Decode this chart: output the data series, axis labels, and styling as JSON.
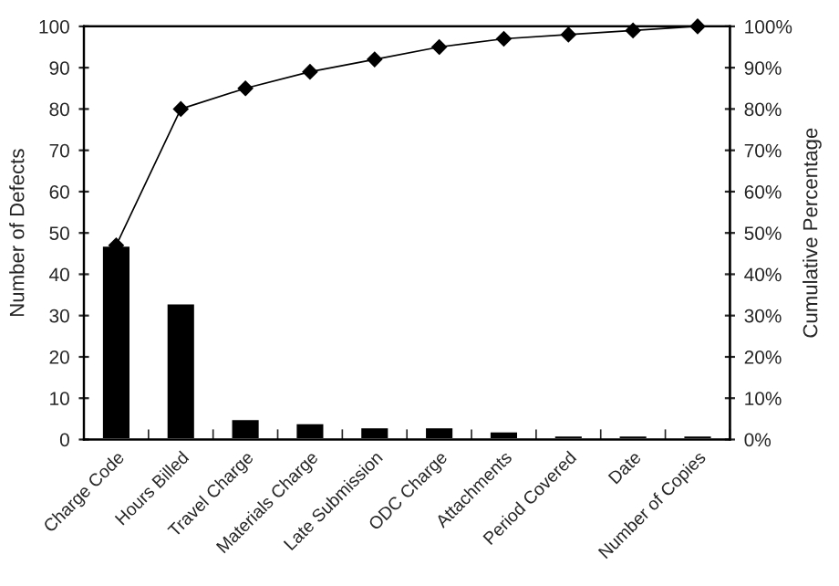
{
  "chart_data": {
    "type": "bar",
    "xlabel": null,
    "ylabel": "Number of Defects",
    "y2label": "Cumulative Percentage",
    "categories": [
      "Charge Code",
      "Hours Billed",
      "Travel Charge",
      "Materials Charge",
      "Late Submission",
      "ODC Charge",
      "Attachments",
      "Period Covered",
      "Date",
      "Number of Copies"
    ],
    "series": [
      {
        "color": "#000000",
        "values": [
          47,
          33,
          5,
          4,
          3,
          3,
          2,
          1,
          1,
          1
        ]
      },
      {
        "type": "line",
        "color": "#000000",
        "marker": "diamond",
        "values": [
          47,
          80,
          85,
          89,
          92,
          95,
          97,
          98,
          99,
          100
        ]
      }
    ],
    "ylim": [
      0,
      100
    ],
    "yticks": [
      0,
      10,
      20,
      30,
      40,
      50,
      60,
      70,
      80,
      90,
      100
    ],
    "y2lim": [
      0,
      100
    ],
    "y2ticks": [
      {
        "value": 0,
        "label": "0%"
      },
      {
        "value": 10,
        "label": "10%"
      },
      {
        "value": 20,
        "label": "20%"
      },
      {
        "value": 30,
        "label": "30%"
      },
      {
        "value": 40,
        "label": "40%"
      },
      {
        "value": 50,
        "label": "50%"
      },
      {
        "value": 60,
        "label": "60%"
      },
      {
        "value": 70,
        "label": "70%"
      },
      {
        "value": 80,
        "label": "80%"
      },
      {
        "value": 90,
        "label": "90%"
      },
      {
        "value": 100,
        "label": "100%"
      }
    ],
    "grid": false,
    "legend": false
  }
}
